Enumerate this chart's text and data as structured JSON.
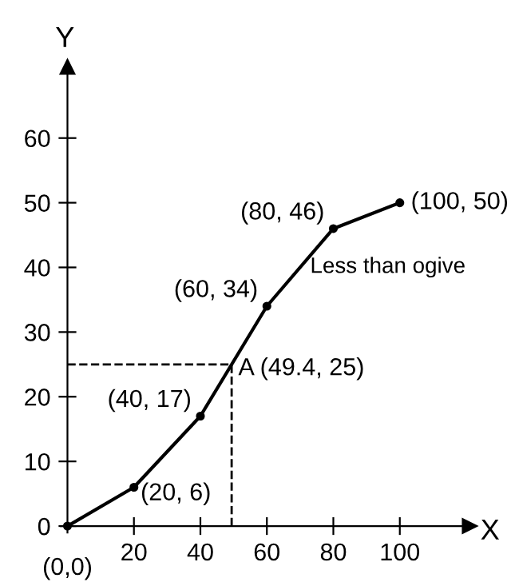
{
  "chart_data": {
    "type": "line",
    "xlabel": "X",
    "ylabel": "Y",
    "x": [
      0,
      20,
      40,
      60,
      80,
      100
    ],
    "series": [
      {
        "color": "#000000",
        "values": [
          0,
          6,
          17,
          34,
          46,
          50
        ],
        "value_labels": [
          "(0,0)",
          "(20, 6)",
          "(40, 17)",
          "(60, 34)",
          "(80, 46)",
          "(100, 50)"
        ]
      }
    ],
    "xlim": [
      -2,
      121
    ],
    "ylim": [
      -1,
      71
    ],
    "xticks": [
      20,
      40,
      60,
      80,
      100
    ],
    "yticks": [
      0,
      10,
      20,
      30,
      40,
      50,
      60
    ],
    "annotations": [
      {
        "text": "A (49.4, 25)",
        "x": 49.4,
        "y": 25
      },
      "Less than ogive"
    ],
    "marker": "circle",
    "line_style": "solid",
    "grid": false,
    "legend": false
  }
}
